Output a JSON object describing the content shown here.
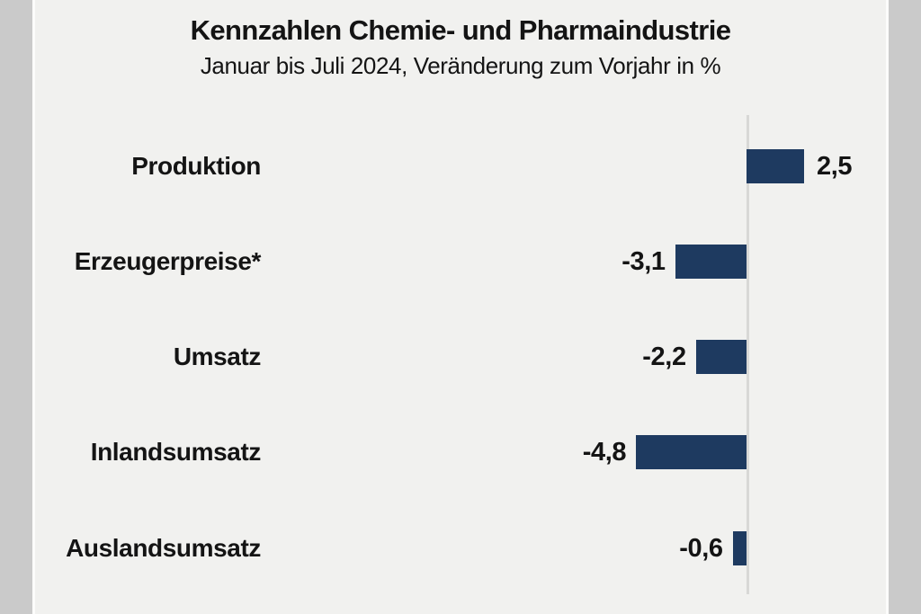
{
  "title": "Kennzahlen Chemie- und Pharmaindustrie",
  "subtitle": "Januar bis Juli 2024, Veränderung zum Vorjahr in %",
  "chart_data": {
    "type": "bar",
    "orientation": "horizontal",
    "title": "Kennzahlen Chemie- und Pharmaindustrie",
    "subtitle": "Januar bis Juli 2024, Veränderung zum Vorjahr in %",
    "categories": [
      "Produktion",
      "Erzeugerpreise*",
      "Umsatz",
      "Inlandsumsatz",
      "Auslandsumsatz"
    ],
    "values": [
      2.5,
      -3.1,
      -2.2,
      -4.8,
      -0.6
    ],
    "value_labels": [
      "2,5",
      "-3,1",
      "-2,2",
      "-4,8",
      "-0,6"
    ],
    "unit": "%",
    "baseline": 0,
    "xlim": [
      -5.6,
      3.8
    ],
    "grid": false,
    "legend": "none",
    "value_label_position": "outside-end"
  },
  "colors": {
    "bar": "#1e3a60",
    "axis_line": "#d8d8d6",
    "panel_background": "#f1f1ef",
    "gutter_background": "#cacaca",
    "panel_edge": "#fcfcfb",
    "text": "#141414"
  }
}
